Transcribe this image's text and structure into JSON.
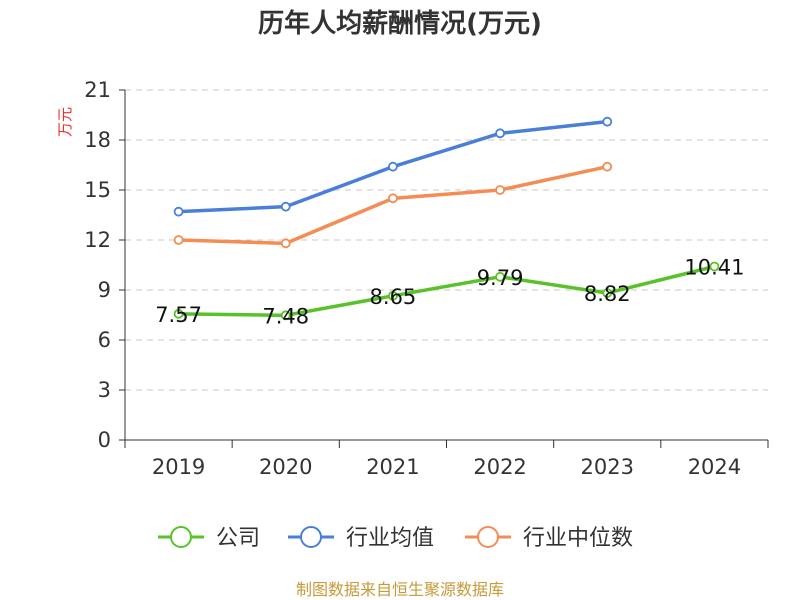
{
  "chart_data": {
    "type": "line",
    "title": "历年人均薪酬情况(万元)",
    "ylabel": "万元",
    "xlabel": "",
    "categories": [
      "2019",
      "2020",
      "2021",
      "2022",
      "2023",
      "2024"
    ],
    "ylim": [
      0,
      21
    ],
    "yticks": [
      0,
      3,
      6,
      9,
      12,
      15,
      18,
      21
    ],
    "grid": true,
    "legend_position": "bottom",
    "series": [
      {
        "name": "公司",
        "color": "#5ac229",
        "values": [
          7.57,
          7.48,
          8.65,
          9.79,
          8.82,
          10.41
        ],
        "labels": [
          "7.57",
          "7.48",
          "8.65",
          "9.79",
          "8.82",
          "10.41"
        ]
      },
      {
        "name": "行业均值",
        "color": "#4a7fd8",
        "values": [
          13.7,
          14.0,
          16.4,
          18.4,
          19.1,
          null
        ]
      },
      {
        "name": "行业中位数",
        "color": "#f48c55",
        "values": [
          12.0,
          11.8,
          14.5,
          15.0,
          16.4,
          null
        ]
      }
    ]
  },
  "source": "制图数据来自恒生聚源数据库"
}
